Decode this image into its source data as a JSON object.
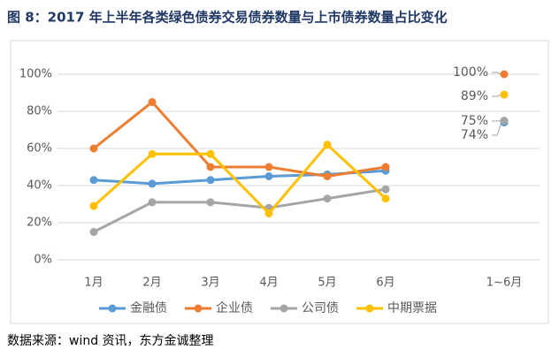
{
  "chart_data": {
    "type": "line",
    "title": "图 8：2017 年上半年各类绿色债券交易债券数量与上市债券数量占比变化",
    "source": "数据来源：wind 资讯，东方金诚整理",
    "categories": [
      "1月",
      "2月",
      "3月",
      "4月",
      "5月",
      "6月"
    ],
    "summary_category": "1~6月",
    "series": [
      {
        "name": "金融债",
        "color": "#5b9bd5",
        "values": [
          43,
          41,
          43,
          45,
          46,
          48
        ],
        "summary_value": 74,
        "summary_value_label": "74%"
      },
      {
        "name": "企业债",
        "color": "#ed7d31",
        "values": [
          60,
          85,
          50,
          50,
          45,
          50
        ],
        "summary_value": 100,
        "summary_value_label": "100%"
      },
      {
        "name": "公司债",
        "color": "#a5a5a5",
        "values": [
          15,
          31,
          31,
          28,
          33,
          38
        ],
        "summary_value": 75,
        "summary_value_label": "75%"
      },
      {
        "name": "中期票据",
        "color": "#ffc000",
        "values": [
          29,
          57,
          57,
          25,
          62,
          33
        ],
        "summary_value": 89,
        "summary_value_label": "89%"
      }
    ],
    "ylim": [
      0,
      100
    ],
    "yticks": [
      {
        "value": 0,
        "label": "0%"
      },
      {
        "value": 20,
        "label": "20%"
      },
      {
        "value": 40,
        "label": "40%"
      },
      {
        "value": 60,
        "label": "60%"
      },
      {
        "value": 80,
        "label": "80%"
      },
      {
        "value": 100,
        "label": "100%"
      }
    ],
    "grid": true,
    "legend": "bottom"
  }
}
